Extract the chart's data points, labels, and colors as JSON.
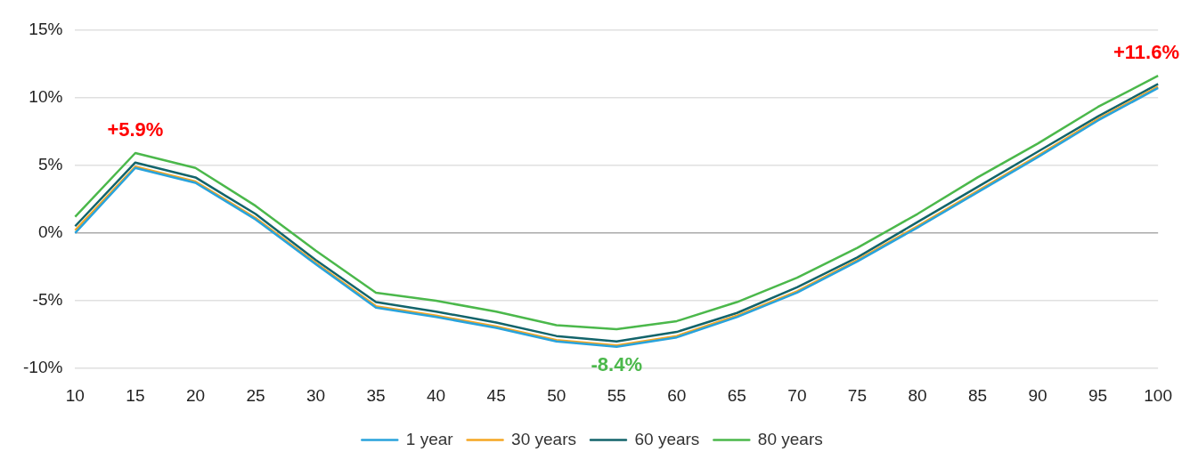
{
  "chart_data": {
    "type": "line",
    "categories": [
      "10",
      "15",
      "20",
      "25",
      "30",
      "35",
      "40",
      "45",
      "50",
      "55",
      "60",
      "65",
      "70",
      "75",
      "80",
      "85",
      "90",
      "95",
      "100"
    ],
    "series": [
      {
        "name": "1 year",
        "color": "#29a3dc",
        "values": [
          0.0,
          4.8,
          3.7,
          1.0,
          -2.3,
          -5.5,
          -6.2,
          -7.0,
          -8.0,
          -8.4,
          -7.7,
          -6.2,
          -4.4,
          -2.1,
          0.4,
          3.0,
          5.6,
          8.3,
          10.7
        ]
      },
      {
        "name": "30 years",
        "color": "#f5a623",
        "values": [
          0.2,
          4.9,
          3.8,
          1.1,
          -2.2,
          -5.4,
          -6.1,
          -6.9,
          -7.9,
          -8.3,
          -7.6,
          -6.1,
          -4.3,
          -2.0,
          0.5,
          3.1,
          5.7,
          8.4,
          10.8
        ]
      },
      {
        "name": "60 years",
        "color": "#13646b",
        "values": [
          0.5,
          5.2,
          4.1,
          1.4,
          -2.0,
          -5.1,
          -5.8,
          -6.6,
          -7.6,
          -8.0,
          -7.3,
          -5.9,
          -4.0,
          -1.8,
          0.8,
          3.4,
          6.0,
          8.6,
          11.0
        ]
      },
      {
        "name": "80 years",
        "color": "#4bb84b",
        "values": [
          1.2,
          5.9,
          4.8,
          2.0,
          -1.3,
          -4.4,
          -5.0,
          -5.8,
          -6.8,
          -7.1,
          -6.5,
          -5.1,
          -3.3,
          -1.1,
          1.4,
          4.1,
          6.6,
          9.3,
          11.6
        ]
      }
    ],
    "ylim": [
      -10,
      15
    ],
    "yticks": [
      {
        "value": -10,
        "label": "-10%"
      },
      {
        "value": -5,
        "label": "-5%"
      },
      {
        "value": 0,
        "label": "0%"
      },
      {
        "value": 5,
        "label": "5%"
      },
      {
        "value": 10,
        "label": "10%"
      },
      {
        "value": 15,
        "label": "15%"
      }
    ],
    "annotations": [
      {
        "text": "+5.9%",
        "x": "15",
        "y": 5.9
      },
      {
        "text": "-8.4%",
        "x": "55",
        "y": -8.4
      },
      {
        "text": "+11.6%",
        "x": "100",
        "y": 11.6
      }
    ],
    "grid": "y",
    "legend": "bottom",
    "marker": "none"
  }
}
